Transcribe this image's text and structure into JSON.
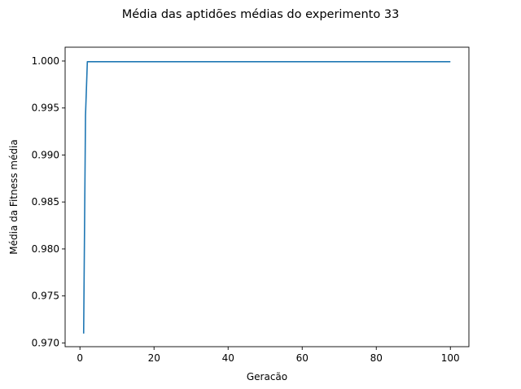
{
  "chart_data": {
    "type": "line",
    "title": "Média das aptidões médias do experimento 33",
    "xlabel": "Geracão",
    "ylabel": "Média da Fitness média",
    "xlim": [
      -4,
      105
    ],
    "ylim": [
      0.9696,
      1.00147
    ],
    "x_ticks": [
      0,
      20,
      40,
      60,
      80,
      100
    ],
    "x_tick_labels": [
      "0",
      "20",
      "40",
      "60",
      "80",
      "100"
    ],
    "y_ticks": [
      0.97,
      0.975,
      0.98,
      0.985,
      0.99,
      0.995,
      1.0
    ],
    "y_tick_labels": [
      "0.970",
      "0.975",
      "0.980",
      "0.985",
      "0.990",
      "0.995",
      "1.000"
    ],
    "grid": false,
    "series": [
      {
        "color": "#1f77b4",
        "points": [
          [
            1,
            0.971
          ],
          [
            1.5,
            0.9942
          ],
          [
            2,
            0.99993
          ],
          [
            100,
            0.99993
          ]
        ]
      }
    ]
  }
}
